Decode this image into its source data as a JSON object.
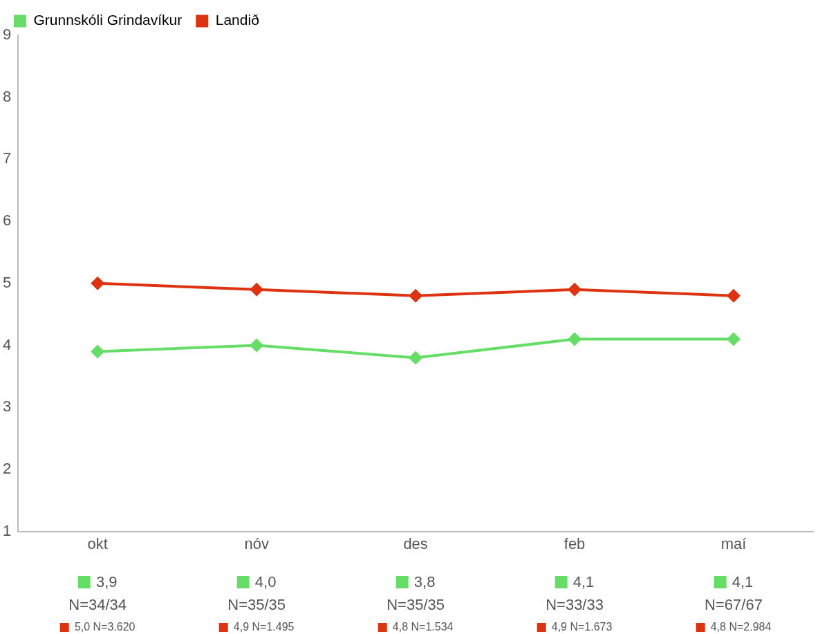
{
  "chart_data": {
    "type": "line",
    "categories": [
      "okt",
      "nóv",
      "des",
      "feb",
      "maí"
    ],
    "series": [
      {
        "name": "Grunnskóli Grindavíkur",
        "color": "#66dd66",
        "values": [
          3.9,
          4.0,
          3.8,
          4.1,
          4.1
        ],
        "value_labels": [
          "3,9",
          "4,0",
          "3,8",
          "4,1",
          "4,1"
        ]
      },
      {
        "name": "Landið",
        "color": "#dd3311",
        "values": [
          5.0,
          4.9,
          4.8,
          4.9,
          4.8
        ],
        "value_labels": [
          "5,0 N=3.620",
          "4,9 N=1.495",
          "4,8 N=1.534",
          "4,9 N=1.673",
          "4,8 N=2.984"
        ]
      }
    ],
    "annotations": [
      "N=34/34",
      "N=35/35",
      "N=35/35",
      "N=33/33",
      "N=67/67"
    ],
    "ylim": [
      1,
      9
    ],
    "yticks": [
      1,
      2,
      3,
      4,
      5,
      6,
      7,
      8,
      9
    ],
    "grid": false,
    "legend": "top left",
    "marker": "diamond",
    "line_style": "solid"
  }
}
